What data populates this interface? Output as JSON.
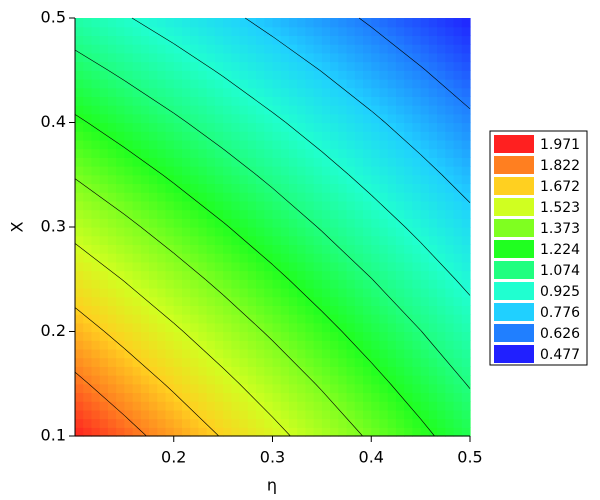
{
  "chart_data": {
    "type": "contour",
    "xlabel": "η",
    "ylabel": "X",
    "xlim": [
      0.1,
      0.5
    ],
    "ylim": [
      0.1,
      0.5
    ],
    "xticks": [
      0.2,
      0.3,
      0.4,
      0.5
    ],
    "yticks": [
      0.1,
      0.2,
      0.3,
      0.4,
      0.5
    ],
    "x": [
      0.1,
      0.15,
      0.2,
      0.25,
      0.3,
      0.35,
      0.4,
      0.45,
      0.5
    ],
    "y": [
      0.1,
      0.15,
      0.2,
      0.25,
      0.3,
      0.35,
      0.4,
      0.45,
      0.5
    ],
    "z": [
      [
        1.97,
        1.868,
        1.765,
        1.663,
        1.56,
        1.458,
        1.355,
        1.253,
        1.15
      ],
      [
        1.849,
        1.751,
        1.653,
        1.555,
        1.458,
        1.36,
        1.262,
        1.164,
        1.066
      ],
      [
        1.728,
        1.634,
        1.541,
        1.448,
        1.355,
        1.262,
        1.169,
        1.076,
        0.983
      ],
      [
        1.606,
        1.518,
        1.429,
        1.341,
        1.253,
        1.164,
        1.076,
        0.987,
        0.899
      ],
      [
        1.485,
        1.401,
        1.317,
        1.234,
        1.15,
        1.066,
        0.982,
        0.899,
        0.815
      ],
      [
        1.364,
        1.285,
        1.206,
        1.127,
        1.048,
        0.968,
        0.889,
        0.81,
        0.731
      ],
      [
        1.243,
        1.168,
        1.094,
        1.02,
        0.945,
        0.871,
        0.797,
        0.722,
        0.648
      ],
      [
        1.121,
        1.051,
        0.982,
        0.912,
        0.842,
        0.773,
        0.703,
        0.633,
        0.564
      ],
      [
        1.0,
        0.935,
        0.87,
        0.805,
        0.74,
        0.675,
        0.61,
        0.545,
        0.48
      ]
    ],
    "levels": [
      {
        "value": 1.971,
        "color": "#ff2020"
      },
      {
        "value": 1.822,
        "color": "#ff7f20"
      },
      {
        "value": 1.672,
        "color": "#ffd020"
      },
      {
        "value": 1.523,
        "color": "#d0ff20"
      },
      {
        "value": 1.373,
        "color": "#7fff20"
      },
      {
        "value": 1.224,
        "color": "#20ff20"
      },
      {
        "value": 1.074,
        "color": "#20ff7f"
      },
      {
        "value": 0.925,
        "color": "#20ffd0"
      },
      {
        "value": 0.776,
        "color": "#20d0ff"
      },
      {
        "value": 0.626,
        "color": "#207fff"
      },
      {
        "value": 0.477,
        "color": "#2020ff"
      }
    ]
  }
}
